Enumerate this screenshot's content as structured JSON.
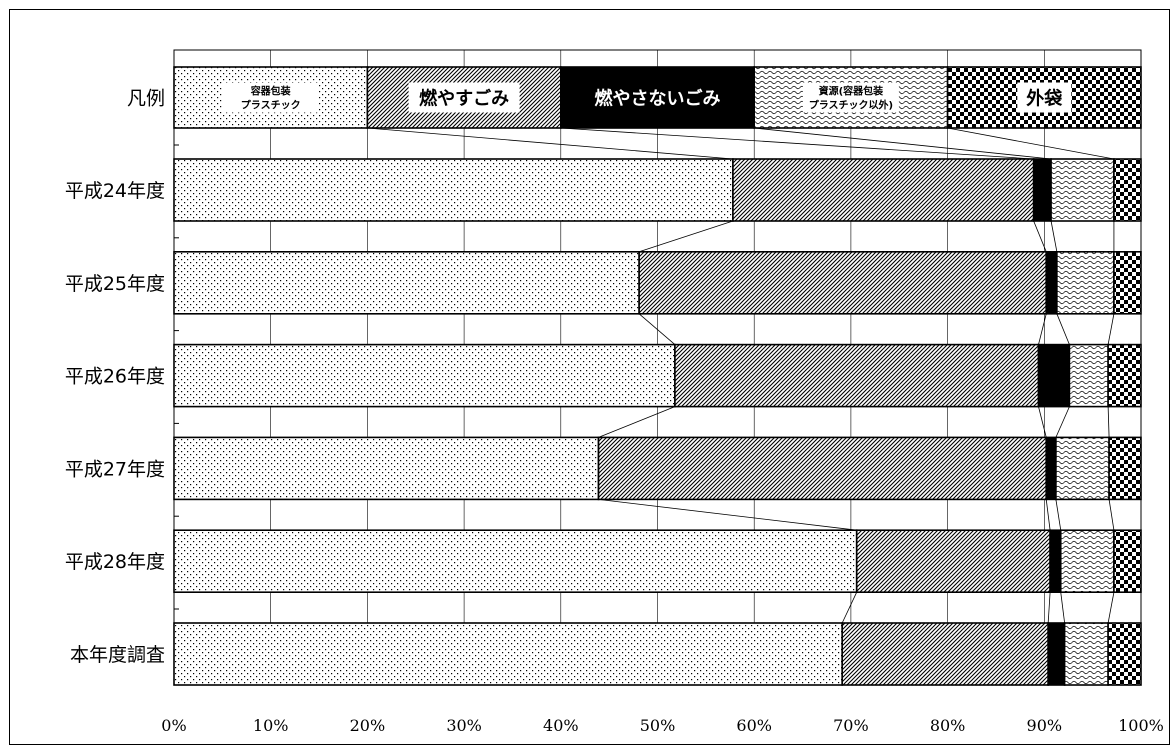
{
  "chart_data": {
    "type": "bar",
    "orientation": "horizontal",
    "stacked": "percent",
    "categories": [
      "平成24年度",
      "平成25年度",
      "平成26年度",
      "平成27年度",
      "平成28年度",
      "本年度調査"
    ],
    "series": [
      {
        "name": "容器包装プラスチック",
        "pattern": "dots",
        "values": [
          57.8,
          48.1,
          51.8,
          43.9,
          70.6,
          69.1
        ]
      },
      {
        "name": "燃やすごみ",
        "pattern": "diagonal-hatch",
        "values": [
          31.1,
          42.1,
          37.6,
          46.3,
          20.0,
          21.3
        ]
      },
      {
        "name": "燃やさないごみ",
        "pattern": "solid-black",
        "values": [
          1.8,
          1.1,
          3.2,
          1.0,
          1.1,
          1.7
        ]
      },
      {
        "name": "資源（容器包装プラスチック以外）",
        "pattern": "wavy",
        "values": [
          6.5,
          5.9,
          4.0,
          5.5,
          5.5,
          4.5
        ]
      },
      {
        "name": "外袋",
        "pattern": "checker",
        "values": [
          2.8,
          2.8,
          3.4,
          3.3,
          2.8,
          3.4
        ]
      }
    ],
    "legend": {
      "label": "凡例",
      "placement": "top-row",
      "entries": [
        {
          "lines": [
            "容器包装",
            "プラスチック"
          ],
          "size": "small"
        },
        {
          "lines": [
            "燃やすごみ"
          ],
          "size": "big"
        },
        {
          "lines": [
            "燃やさないごみ"
          ],
          "size": "big",
          "inverted": true
        },
        {
          "lines": [
            "資源(容器包装",
            "プラスチック以外)"
          ],
          "size": "small"
        },
        {
          "lines": [
            "外袋"
          ],
          "size": "big"
        }
      ]
    },
    "xlim": [
      0,
      100
    ],
    "xticks": [
      "0%",
      "10%",
      "20%",
      "30%",
      "40%",
      "50%",
      "60%",
      "70%",
      "80%",
      "90%",
      "100%"
    ],
    "grid": true,
    "series_lines": true
  },
  "colors": {
    "background": "#ffffff",
    "bar_stroke": "#000000",
    "grid": "#000000"
  }
}
